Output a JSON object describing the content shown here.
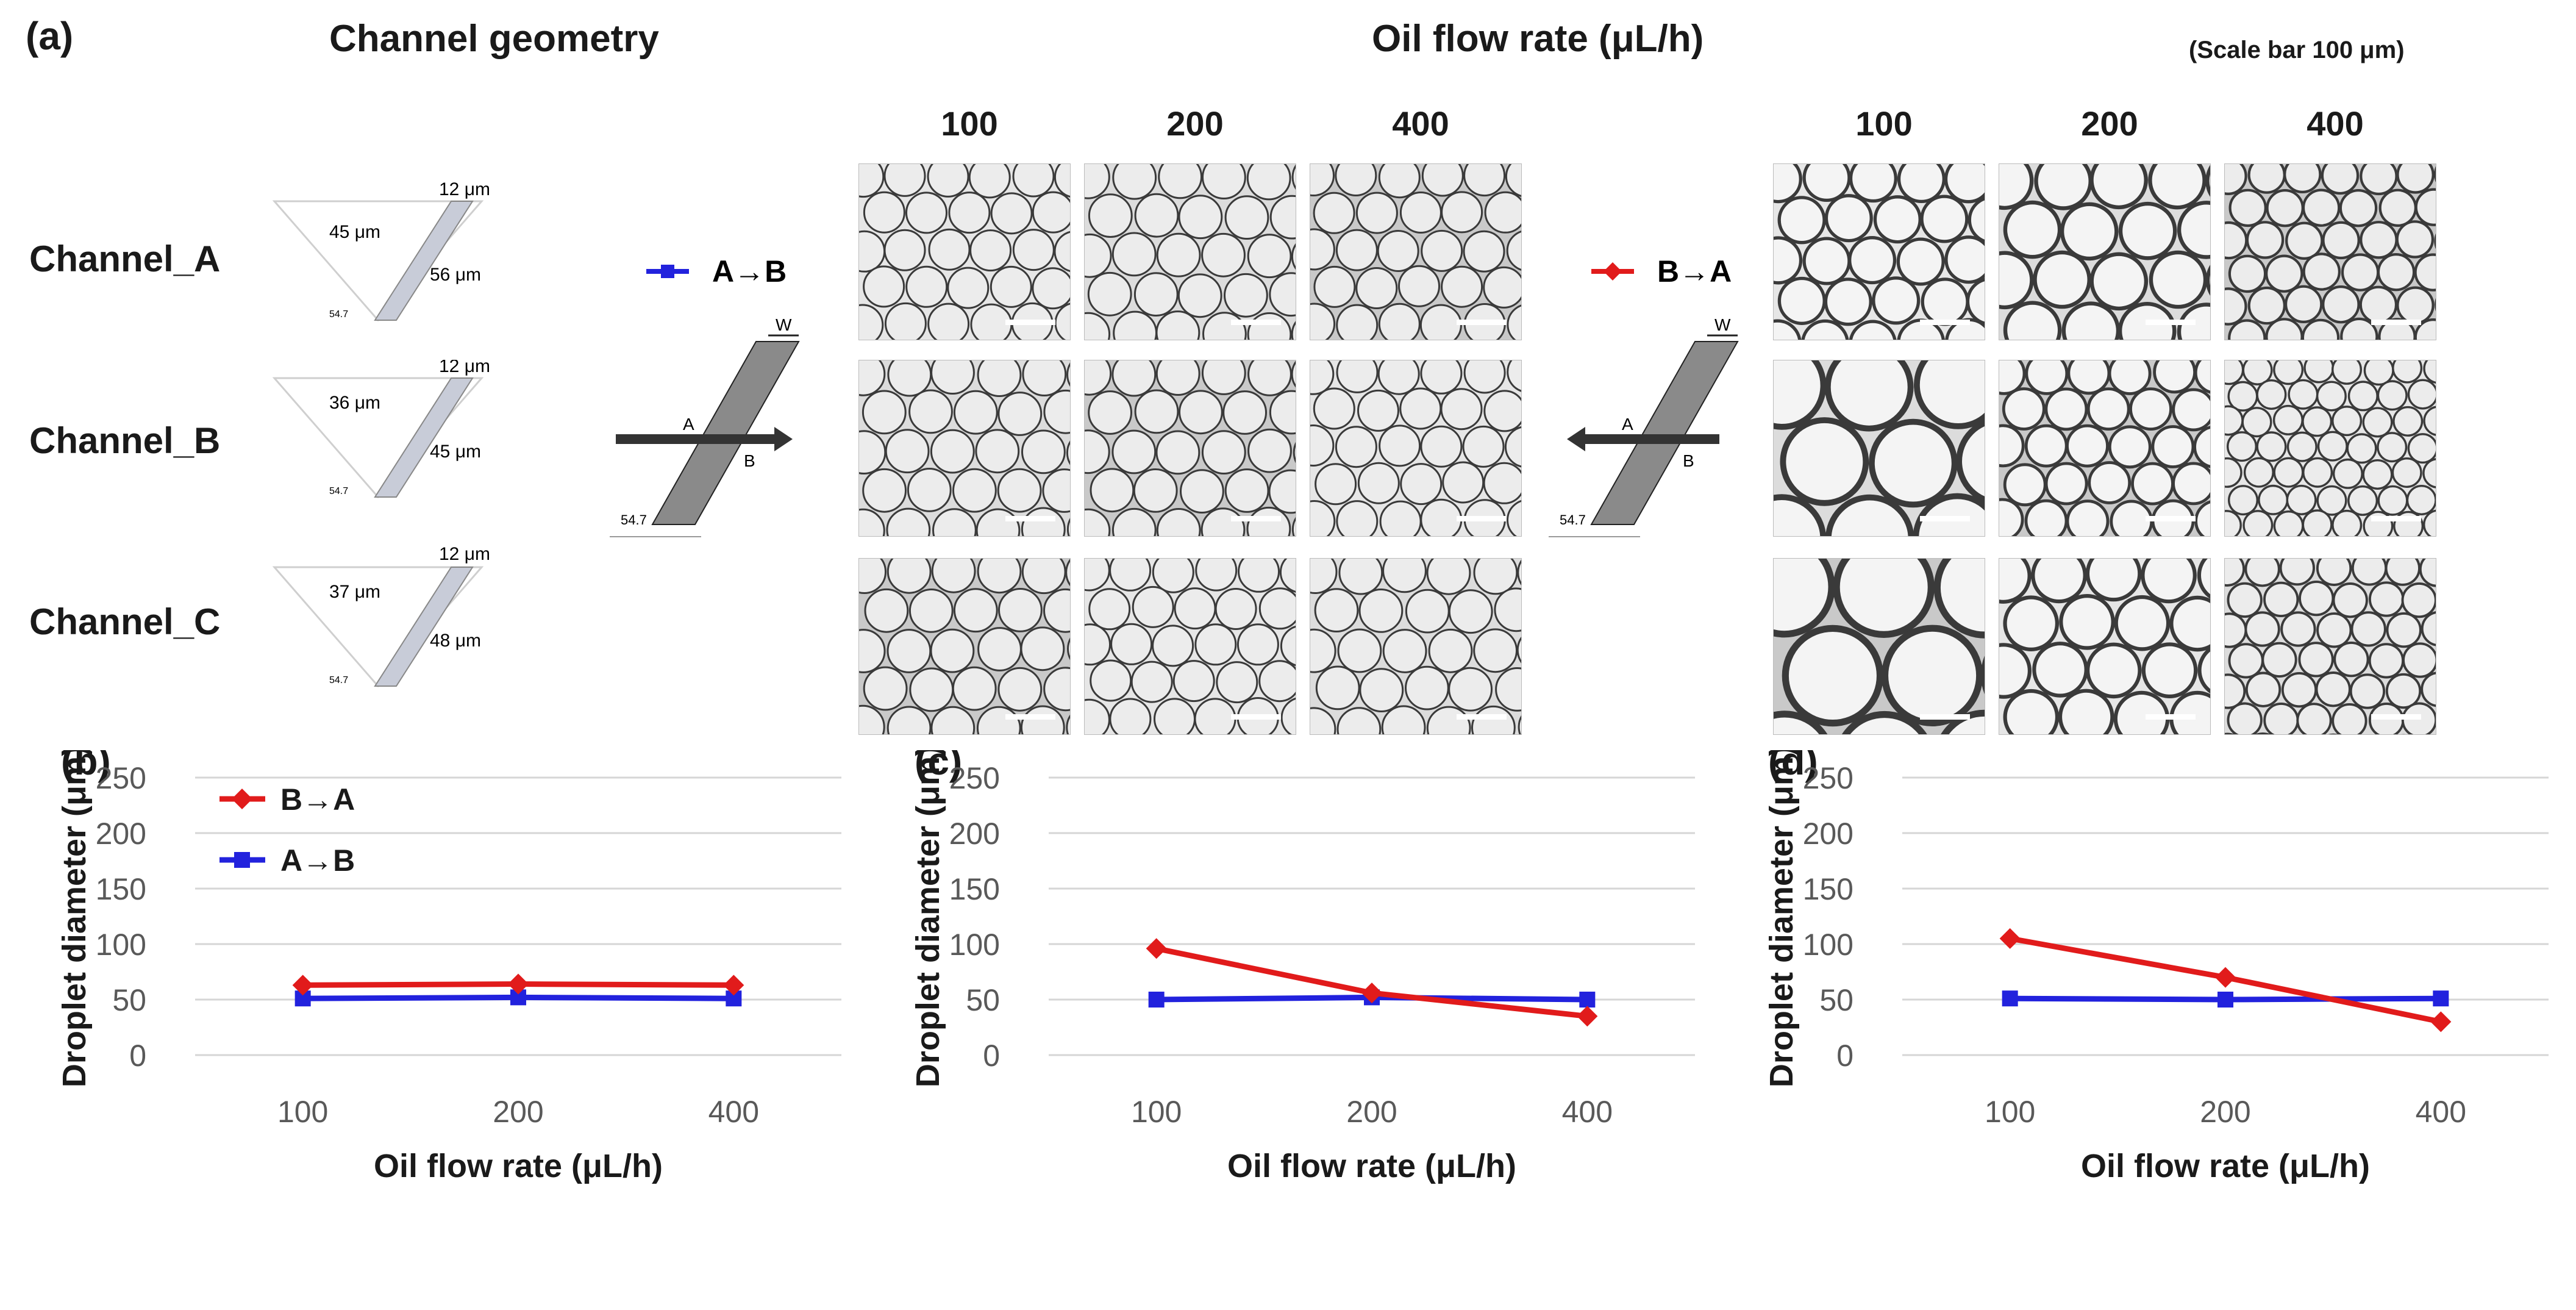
{
  "panel_a": {
    "label": "(a)",
    "geometry_title": "Channel geometry",
    "oil_title": "Oil flow rate (μL/h)",
    "scale_note": "(Scale bar 100 μm)",
    "flow_rates": [
      "100",
      "200",
      "400"
    ],
    "channels": [
      {
        "name": "Channel_A",
        "top": "12 μm",
        "left": "45 μm",
        "right": "56 μm",
        "angle": "54.7"
      },
      {
        "name": "Channel_B",
        "top": "12 μm",
        "left": "36 μm",
        "right": "45 μm",
        "angle": "54.7"
      },
      {
        "name": "Channel_C",
        "top": "12 μm",
        "left": "37 μm",
        "right": "48 μm",
        "angle": "54.7"
      }
    ],
    "direction_ab": {
      "label": "A→B",
      "color": "#2222dd",
      "w": "W",
      "a": "A",
      "b": "B",
      "angle": "54.7"
    },
    "direction_ba": {
      "label": "B→A",
      "color": "#e11b1b",
      "w": "W",
      "a": "A",
      "b": "B",
      "angle": "54.7"
    }
  },
  "chart_data": [
    {
      "panel": "(b)",
      "type": "line",
      "xlabel": "Oil flow rate (μL/h)",
      "ylabel": "Droplet diameter (μm)",
      "categories": [
        "100",
        "200",
        "400"
      ],
      "ylim": [
        0,
        250
      ],
      "yticks": [
        "0",
        "50",
        "100",
        "150",
        "200",
        "250"
      ],
      "grid": true,
      "legend": "top-left",
      "series": [
        {
          "name": "B→A",
          "color": "#e11b1b",
          "marker": "diamond",
          "values": [
            63,
            64,
            63
          ]
        },
        {
          "name": "A→B",
          "color": "#2222dd",
          "marker": "square",
          "values": [
            51,
            52,
            51
          ]
        }
      ]
    },
    {
      "panel": "(c)",
      "type": "line",
      "xlabel": "Oil flow rate (μL/h)",
      "ylabel": "Droplet diameter (μm)",
      "categories": [
        "100",
        "200",
        "400"
      ],
      "ylim": [
        0,
        250
      ],
      "yticks": [
        "0",
        "50",
        "100",
        "150",
        "200",
        "250"
      ],
      "grid": true,
      "series": [
        {
          "name": "B→A",
          "color": "#e11b1b",
          "marker": "diamond",
          "values": [
            96,
            56,
            35
          ]
        },
        {
          "name": "A→B",
          "color": "#2222dd",
          "marker": "square",
          "values": [
            50,
            52,
            50
          ]
        }
      ]
    },
    {
      "panel": "(d)",
      "type": "line",
      "xlabel": "Oil flow rate (μL/h)",
      "ylabel": "Droplet diameter (μm)",
      "categories": [
        "100",
        "200",
        "400"
      ],
      "ylim": [
        0,
        250
      ],
      "yticks": [
        "0",
        "50",
        "100",
        "150",
        "200",
        "250"
      ],
      "grid": true,
      "series": [
        {
          "name": "B→A",
          "color": "#e11b1b",
          "marker": "diamond",
          "values": [
            105,
            70,
            30
          ]
        },
        {
          "name": "A→B",
          "color": "#2222dd",
          "marker": "square",
          "values": [
            51,
            50,
            51
          ]
        }
      ]
    }
  ]
}
